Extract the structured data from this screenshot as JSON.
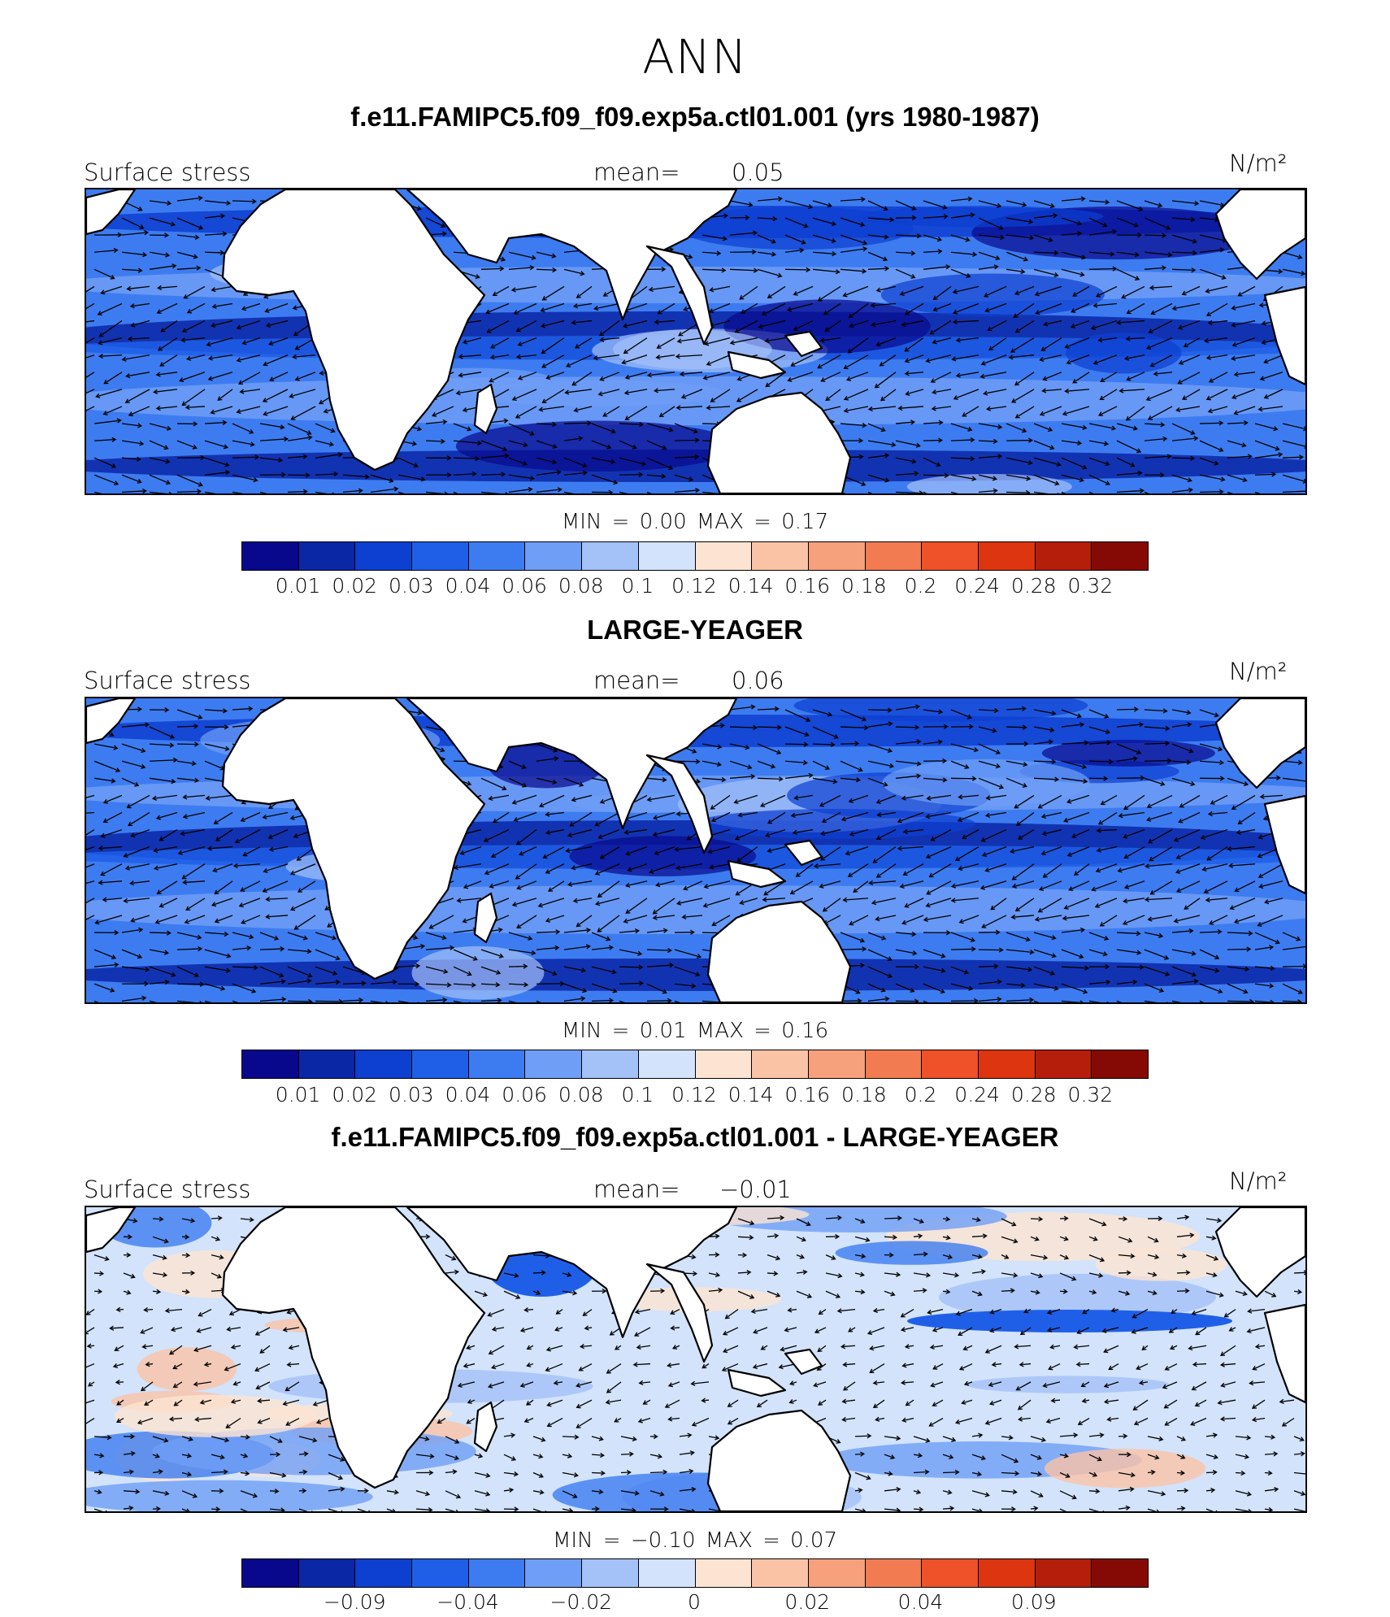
{
  "title": "ANN",
  "panels": [
    {
      "title": "f.e11.FAMIPC5.f09_f09.exp5a.ctl01.001 (yrs 1980-1987)",
      "variable": "Surface stress",
      "mean_label": "mean=",
      "mean_value": "0.05",
      "units": "N/m²",
      "minmax": "MIN =     0.00  MAX =     0.17",
      "colorbar_ticks": [
        "0.01",
        "0.02",
        "0.03",
        "0.04",
        "0.06",
        "0.08",
        "0.1",
        "0.12",
        "0.14",
        "0.16",
        "0.18",
        "0.2",
        "0.24",
        "0.28",
        "0.32"
      ],
      "field_style": "strong"
    },
    {
      "title": "LARGE-YEAGER",
      "variable": "Surface stress",
      "mean_label": "mean=",
      "mean_value": "0.06",
      "units": "N/m²",
      "minmax": "MIN =     0.01  MAX =     0.16",
      "colorbar_ticks": [
        "0.01",
        "0.02",
        "0.03",
        "0.04",
        "0.06",
        "0.08",
        "0.1",
        "0.12",
        "0.14",
        "0.16",
        "0.18",
        "0.2",
        "0.24",
        "0.28",
        "0.32"
      ],
      "field_style": "strong"
    },
    {
      "title": "f.e11.FAMIPC5.f09_f09.exp5a.ctl01.001 - LARGE-YEAGER",
      "variable": "Surface stress",
      "mean_label": "mean=",
      "mean_value": "−0.01",
      "units": "N/m²",
      "minmax": "MIN =   −0.10  MAX =     0.07",
      "colorbar_ticks": [
        "−0.09",
        "−0.04",
        "−0.02",
        "0",
        "0.02",
        "0.04",
        "0.09"
      ],
      "field_style": "diff"
    }
  ],
  "colorbar_colors": [
    "#08088c",
    "#0a27a6",
    "#0d3fd0",
    "#1f5fe8",
    "#3d7cf0",
    "#6f9ef6",
    "#a4c1f8",
    "#d2e3fb",
    "#fde4d2",
    "#fbc3a6",
    "#f7a07c",
    "#f37b52",
    "#ef5128",
    "#dd3510",
    "#b51e0a",
    "#850a06"
  ]
}
